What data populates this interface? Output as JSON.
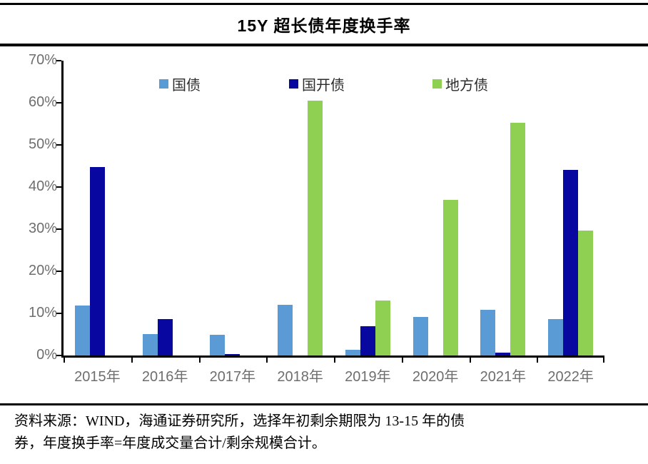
{
  "title": "15Y 超长债年度换手率",
  "chart_data": {
    "type": "bar",
    "categories": [
      "2015年",
      "2016年",
      "2017年",
      "2018年",
      "2019年",
      "2020年",
      "2021年",
      "2022年"
    ],
    "series": [
      {
        "name": "国债",
        "color": "#5B9BD5",
        "values": [
          11.8,
          5.1,
          5.0,
          12.0,
          1.3,
          9.2,
          10.9,
          8.7
        ]
      },
      {
        "name": "国开债",
        "color": "#0808A0",
        "values": [
          44.7,
          8.6,
          0.3,
          0,
          7.0,
          0,
          0.7,
          44.0
        ]
      },
      {
        "name": "地方债",
        "color": "#8FD053",
        "values": [
          0,
          0,
          0,
          60.5,
          13.0,
          37.0,
          55.3,
          29.7
        ]
      }
    ],
    "ylabel": "",
    "xlabel": "",
    "ylim": [
      0,
      70
    ],
    "ytick_step": 10,
    "ytick_labels": [
      "0%",
      "10%",
      "20%",
      "30%",
      "40%",
      "50%",
      "60%",
      "70%"
    ],
    "grid": false,
    "legend_position": "top-inside",
    "axis_color": "#000000",
    "tick_label_color": "#6e6e6e"
  },
  "footer": {
    "line1": "资料来源：WIND，海通证券研究所，选择年初剩余期限为 13-15 年的债",
    "line2": "券，年度换手率=年度成交量合计/剩余规模合计。"
  }
}
